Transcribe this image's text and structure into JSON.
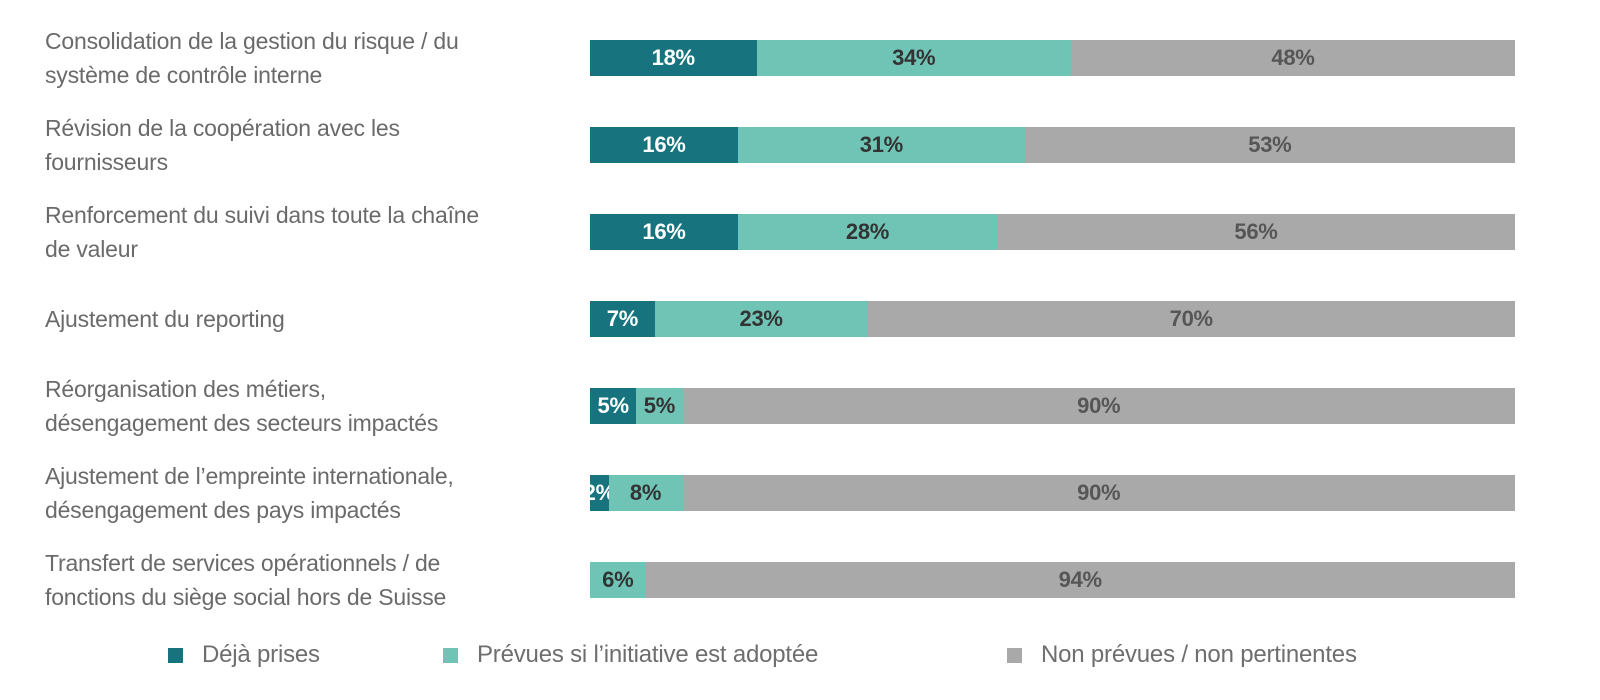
{
  "chart_data": {
    "type": "bar",
    "orientation": "horizontal",
    "stacked": true,
    "value_unit": "percent",
    "xlim": [
      0,
      100
    ],
    "grid": false,
    "legend_position": "bottom",
    "categories": [
      "Consolidation de la gestion du risque / du\nsystème de contrôle interne",
      "Révision de la coopération avec les\nfournisseurs",
      "Renforcement du suivi dans toute la chaîne\nde valeur",
      "Ajustement du reporting",
      "Réorganisation des métiers,\ndésengagement des secteurs impactés",
      "Ajustement de l’empreinte internationale,\ndésengagement des pays impactés",
      "Transfert de services opérationnels / de\nfonctions du siège social hors de Suisse"
    ],
    "series": [
      {
        "name": "Déjà prises",
        "color": "#17747f",
        "values": [
          18,
          16,
          16,
          7,
          5,
          2,
          0
        ],
        "labels": [
          "18%",
          "16%",
          "16%",
          "7%",
          "5%",
          "2%",
          ""
        ]
      },
      {
        "name": "Prévues si l’initiative est adoptée",
        "color": "#70c4b5",
        "values": [
          34,
          31,
          28,
          23,
          5,
          8,
          6
        ],
        "labels": [
          "34%",
          "31%",
          "28%",
          "23%",
          "5%",
          "8%",
          "6%"
        ]
      },
      {
        "name": "Non prévues / non pertinentes",
        "color": "#a9a9a9",
        "values": [
          48,
          53,
          56,
          70,
          90,
          90,
          94
        ],
        "labels": [
          "48%",
          "53%",
          "56%",
          "70%",
          "90%",
          "90%",
          "94%"
        ]
      }
    ]
  }
}
